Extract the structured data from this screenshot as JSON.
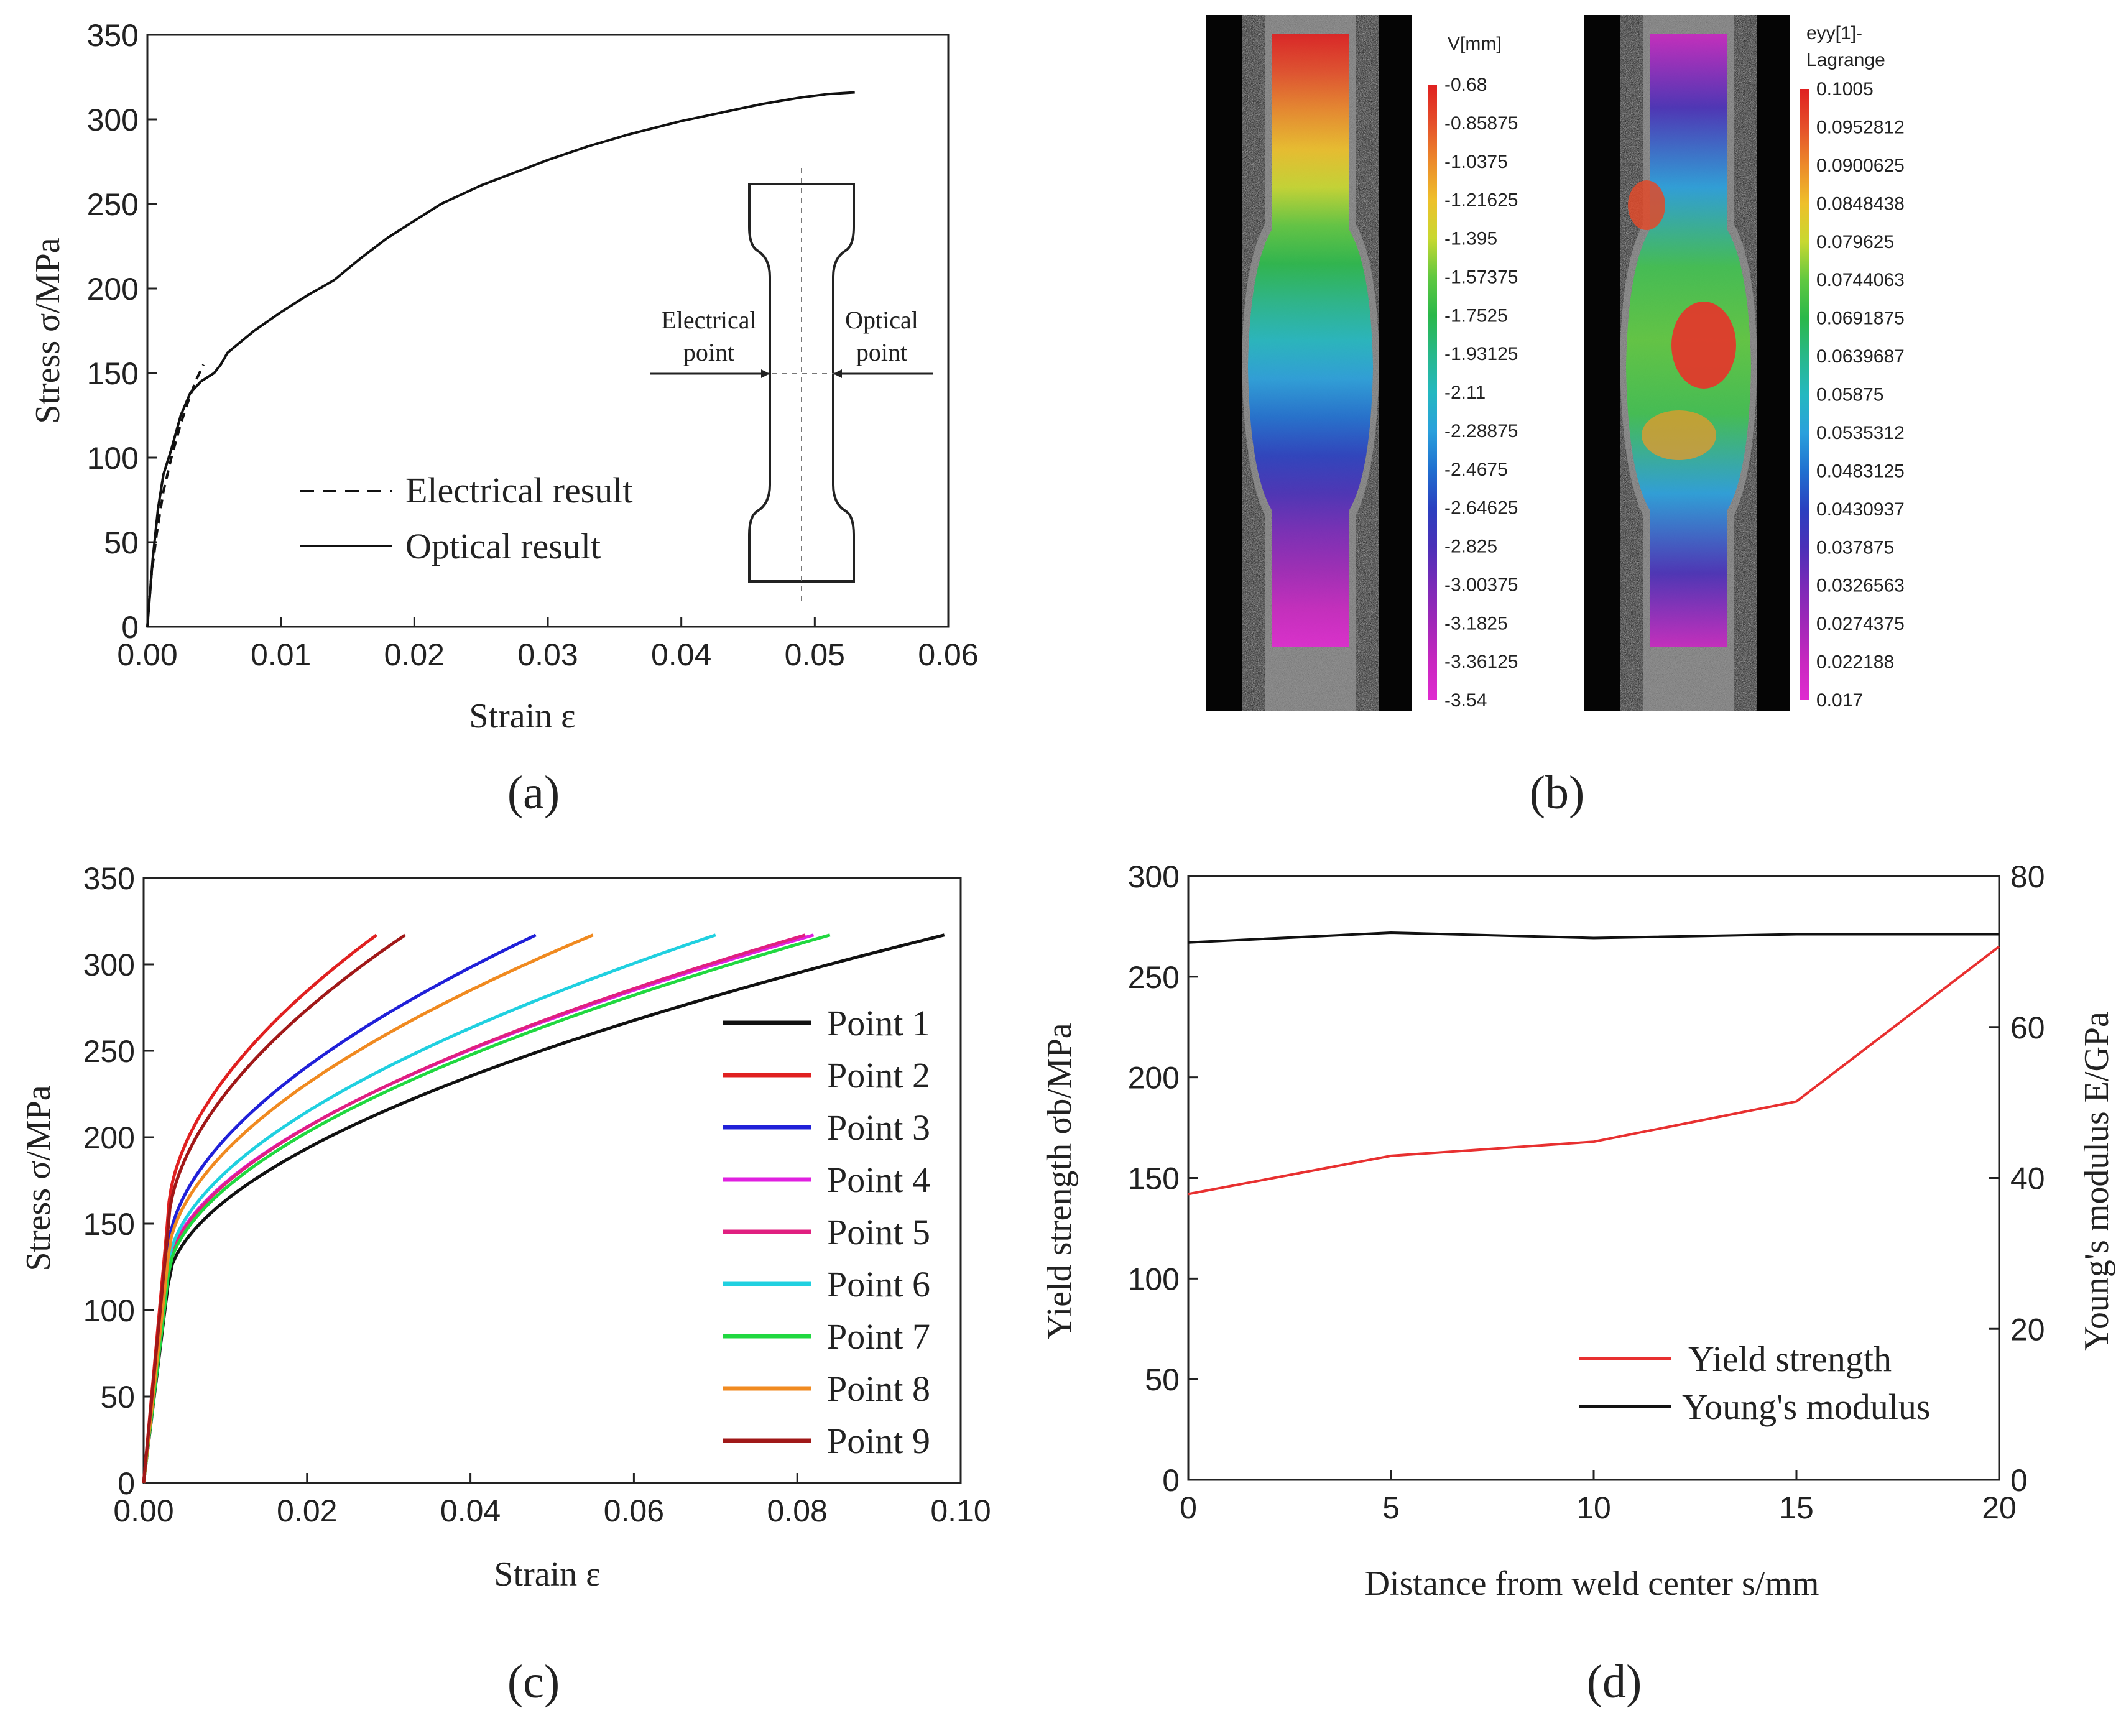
{
  "panels": [
    "(a)",
    "(b)",
    "(c)",
    "(d)"
  ],
  "chart_data": [
    {
      "id": "a",
      "type": "line",
      "xlabel": "Strain ε",
      "ylabel": "Stress σ/MPa",
      "xlim": [
        0,
        0.06
      ],
      "ylim": [
        0,
        350
      ],
      "xticks": [
        "0.00",
        "0.01",
        "0.02",
        "0.03",
        "0.04",
        "0.05",
        "0.06"
      ],
      "yticks": [
        "0",
        "50",
        "100",
        "150",
        "200",
        "250",
        "300",
        "350"
      ],
      "legend_position": "center-right",
      "series": [
        {
          "name": "Electrical  result",
          "style": "dashed",
          "color": "#111111",
          "points": [
            [
              0,
              0
            ],
            [
              0.0003,
              30
            ],
            [
              0.0007,
              55
            ],
            [
              0.0012,
              80
            ],
            [
              0.0018,
              100
            ],
            [
              0.0025,
              120
            ],
            [
              0.003,
              132
            ],
            [
              0.0036,
              145
            ],
            [
              0.0042,
              155
            ]
          ]
        },
        {
          "name": "Optical result",
          "style": "solid",
          "color": "#111111",
          "points": [
            [
              0,
              0
            ],
            [
              0.0004,
              40
            ],
            [
              0.0008,
              70
            ],
            [
              0.0012,
              90
            ],
            [
              0.0018,
              105
            ],
            [
              0.0025,
              125
            ],
            [
              0.0032,
              138
            ],
            [
              0.004,
              145
            ],
            [
              0.005,
              150
            ],
            [
              0.0055,
              155
            ],
            [
              0.006,
              162
            ],
            [
              0.008,
              175
            ],
            [
              0.01,
              186
            ],
            [
              0.012,
              196
            ],
            [
              0.014,
              205
            ],
            [
              0.016,
              218
            ],
            [
              0.018,
              230
            ],
            [
              0.02,
              240
            ],
            [
              0.022,
              250
            ],
            [
              0.025,
              261
            ],
            [
              0.028,
              270
            ],
            [
              0.03,
              276
            ],
            [
              0.033,
              284
            ],
            [
              0.036,
              291
            ],
            [
              0.04,
              299
            ],
            [
              0.043,
              304
            ],
            [
              0.046,
              309
            ],
            [
              0.049,
              313
            ],
            [
              0.051,
              315
            ],
            [
              0.053,
              316
            ]
          ]
        }
      ],
      "inset": {
        "left_label_line1": "Electrical",
        "left_label_line2": "point",
        "right_label_line1": "Optical",
        "right_label_line2": "point"
      }
    },
    {
      "id": "b",
      "type": "heatmap",
      "maps": [
        {
          "legend_title": "V[mm]",
          "scale": [
            "-0.68",
            "-0.85875",
            "-1.0375",
            "-1.21625",
            "-1.395",
            "-1.57375",
            "-1.7525",
            "-1.93125",
            "-2.11",
            "-2.28875",
            "-2.4675",
            "-2.64625",
            "-2.825",
            "-3.00375",
            "-3.1825",
            "-3.36125",
            "-3.54"
          ]
        },
        {
          "legend_title_line1": "eyy[1]-",
          "legend_title_line2": "Lagrange",
          "scale": [
            "0.1005",
            "0.0952812",
            "0.0900625",
            "0.0848438",
            "0.079625",
            "0.0744063",
            "0.0691875",
            "0.0639687",
            "0.05875",
            "0.0535312",
            "0.0483125",
            "0.0430937",
            "0.037875",
            "0.0326563",
            "0.0274375",
            "0.022188",
            "0.017"
          ]
        }
      ],
      "colors": [
        "#e02020",
        "#e5502a",
        "#ec8a2a",
        "#eec02a",
        "#c8d830",
        "#60c840",
        "#2ab84a",
        "#28b88a",
        "#24b8c0",
        "#2aa0dc",
        "#2070d0",
        "#2a40c0",
        "#4a30b8",
        "#7a2ab8",
        "#a028b8",
        "#c828c0",
        "#e02ad0"
      ]
    },
    {
      "id": "c",
      "type": "line",
      "xlabel": "Strain  ε",
      "ylabel": "Stress σ/MPa",
      "xlim": [
        0,
        0.1
      ],
      "ylim": [
        0,
        350
      ],
      "xticks": [
        "0.00",
        "0.02",
        "0.04",
        "0.06",
        "0.08",
        "0.10"
      ],
      "yticks": [
        "0",
        "50",
        "100",
        "150",
        "200",
        "250",
        "300",
        "350"
      ],
      "legend_position": "right",
      "series": [
        {
          "name": "Point 1",
          "color": "#111111",
          "xmax": 0.098,
          "a": 160,
          "b": 149
        },
        {
          "name": "Point 2",
          "color": "#e02020",
          "xmax": 0.0285,
          "a": 215,
          "b": 99
        },
        {
          "name": "Point 3",
          "color": "#2020d8",
          "xmax": 0.048,
          "a": 185,
          "b": 132
        },
        {
          "name": "Point 4",
          "color": "#e020e0",
          "xmax": 0.082,
          "a": 170,
          "b": 146
        },
        {
          "name": "Point 5",
          "color": "#e02080",
          "xmax": 0.081,
          "a": 168,
          "b": 148
        },
        {
          "name": "Point 6",
          "color": "#20d0e0",
          "xmax": 0.07,
          "a": 172,
          "b": 142
        },
        {
          "name": "Point 7",
          "color": "#20d840",
          "xmax": 0.084,
          "a": 165,
          "b": 150
        },
        {
          "name": "Point 8",
          "color": "#f08a20",
          "xmax": 0.055,
          "a": 180,
          "b": 137
        },
        {
          "name": "Point 9",
          "color": "#a01818",
          "xmax": 0.032,
          "a": 205,
          "b": 109
        }
      ]
    },
    {
      "id": "d",
      "type": "line",
      "xlabel": "Distance from weld center s/mm",
      "ylabel_left": "Yield strength σb/MPa",
      "ylabel_right": "Young's modulus E/GPa",
      "xlim": [
        0,
        20
      ],
      "ylim_left": [
        0,
        300
      ],
      "ylim_right": [
        0,
        80
      ],
      "xticks": [
        "0",
        "5",
        "10",
        "15",
        "20"
      ],
      "yticks_left": [
        "0",
        "50",
        "100",
        "150",
        "200",
        "250",
        "300"
      ],
      "yticks_right": [
        "0",
        "20",
        "40",
        "60",
        "80"
      ],
      "legend_position": "bottom-right",
      "series": [
        {
          "name": "Yield strength",
          "axis": "left",
          "color": "#e83030",
          "x": [
            0,
            5,
            10,
            15,
            20
          ],
          "y": [
            142,
            161,
            168,
            188,
            265
          ]
        },
        {
          "name": "Young's modulus",
          "axis": "right",
          "color": "#111111",
          "x": [
            0,
            5,
            10,
            15,
            20
          ],
          "y": [
            71.2,
            72.5,
            71.8,
            72.3,
            72.3
          ]
        }
      ]
    }
  ]
}
